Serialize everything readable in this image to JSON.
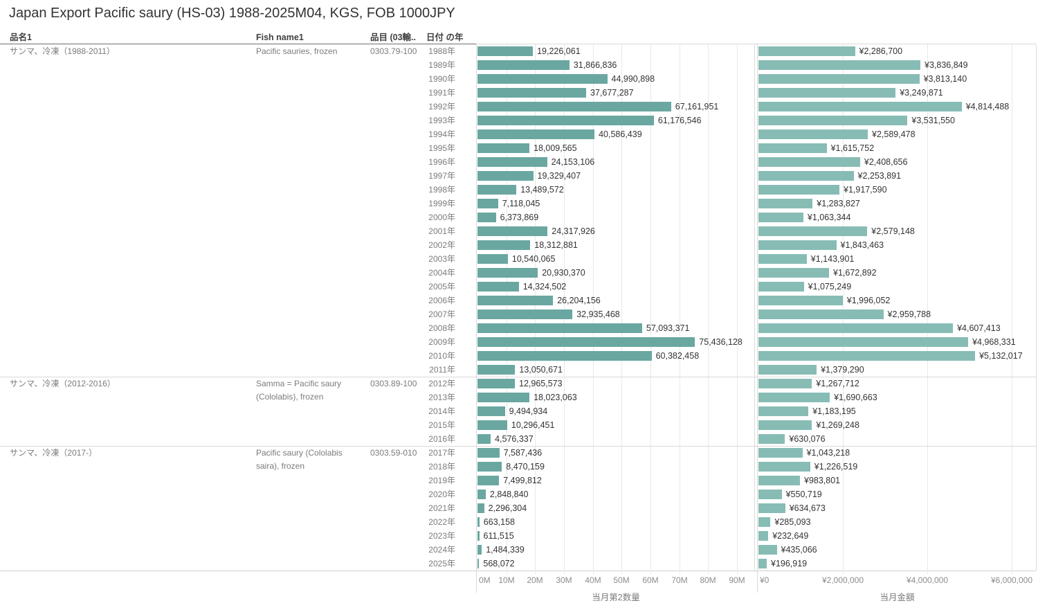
{
  "title": "Japan Export Pacific saury (HS-03) 1988-2025M04, KGS, FOB 1000JPY",
  "columns": {
    "product_name": "品名1",
    "fish_name": "Fish name1",
    "item_code": "品目 (03輸..",
    "date_year": "日付 の年"
  },
  "colors": {
    "quantity_bar": "#6AA7A1",
    "value_bar": "#87BCB5",
    "gridline": "#e8e8e8",
    "pane_border": "#d9d9d9",
    "bottom_border": "#cfcfcf",
    "header_underline": "#6e6e6e",
    "value_text": "#333333",
    "label_text": "#7b7b7b",
    "tick_text": "#8c8c8c"
  },
  "chart_data": {
    "type": "bar",
    "orientation": "horizontal",
    "title": "Japan Export Pacific saury (HS-03) 1988-2025M04, KGS, FOB 1000JPY",
    "quantity_axis": {
      "title": "当月第2数量",
      "tick_labels": [
        "0M",
        "10M",
        "20M",
        "30M",
        "40M",
        "50M",
        "60M",
        "70M",
        "80M",
        "90M"
      ],
      "tick_interval": 10000000,
      "range": [
        0,
        90000000
      ]
    },
    "value_axis": {
      "title": "当月金額",
      "prefix": "¥",
      "tick_labels": [
        "¥0",
        "¥2,000,000",
        "¥4,000,000",
        "¥6,000,000"
      ],
      "tick_interval": 2000000,
      "range": [
        0,
        6000000
      ]
    },
    "sections": [
      {
        "product_name": "サンマ、冷凍（1988-2011）",
        "fish_name_lines": [
          "Pacific sauries, frozen"
        ],
        "item_code": "0303.79-100",
        "years": [
          "1988年",
          "1989年",
          "1990年",
          "1991年",
          "1992年",
          "1993年",
          "1994年",
          "1995年",
          "1996年",
          "1997年",
          "1998年",
          "1999年",
          "2000年",
          "2001年",
          "2002年",
          "2003年",
          "2004年",
          "2005年",
          "2006年",
          "2007年",
          "2008年",
          "2009年",
          "2010年",
          "2011年"
        ],
        "quantity": [
          19226061,
          31866836,
          44990898,
          37677287,
          67161951,
          61176546,
          40586439,
          18009565,
          24153106,
          19329407,
          13489572,
          7118045,
          6373869,
          24317926,
          18312881,
          10540065,
          20930370,
          14324502,
          26204156,
          32935468,
          57093371,
          75436128,
          60382458,
          13050671
        ],
        "value": [
          2286700,
          3836849,
          3813140,
          3249871,
          4814488,
          3531550,
          2589478,
          1615752,
          2408656,
          2253891,
          1917590,
          1283827,
          1063344,
          2579148,
          1843463,
          1143901,
          1672892,
          1075249,
          1996052,
          2959788,
          4607413,
          4968331,
          5132017,
          1379290
        ]
      },
      {
        "product_name": "サンマ、冷凍（2012-2016）",
        "fish_name_lines": [
          "Samma = Pacific saury",
          "(Cololabis), frozen"
        ],
        "item_code": "0303.89-100",
        "years": [
          "2012年",
          "2013年",
          "2014年",
          "2015年",
          "2016年"
        ],
        "quantity": [
          12965573,
          18023063,
          9494934,
          10296451,
          4576337
        ],
        "value": [
          1267712,
          1690663,
          1183195,
          1269248,
          630076
        ]
      },
      {
        "product_name": "サンマ、冷凍（2017-）",
        "fish_name_lines": [
          "Pacific saury (Cololabis",
          "saira), frozen"
        ],
        "item_code": "0303.59-010",
        "years": [
          "2017年",
          "2018年",
          "2019年",
          "2020年",
          "2021年",
          "2022年",
          "2023年",
          "2024年",
          "2025年"
        ],
        "quantity": [
          7587436,
          8470159,
          7499812,
          2848840,
          2296304,
          663158,
          611515,
          1484339,
          568072
        ],
        "value": [
          1043218,
          1226519,
          983801,
          550719,
          634673,
          285093,
          232649,
          435066,
          196919
        ]
      }
    ]
  }
}
